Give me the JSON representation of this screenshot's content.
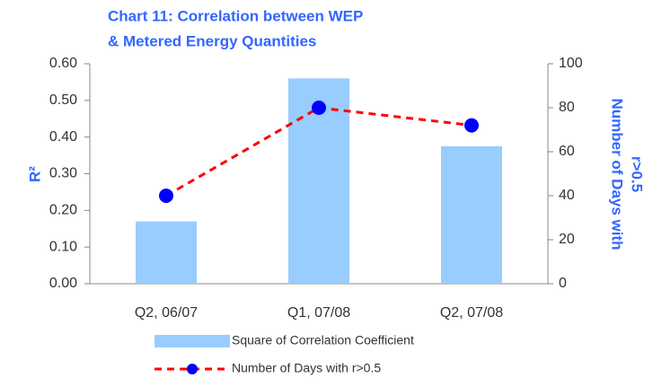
{
  "chart_data": {
    "type": "bar-line",
    "title": [
      "Chart 11: Correlation between WEP",
      "& Metered Energy Quantities"
    ],
    "ylabel": "R²",
    "y2label": [
      "Number of Days with",
      "r>0.5"
    ],
    "categories": [
      "Q2, 06/07",
      "Q1, 07/08",
      "Q2, 07/08"
    ],
    "series": [
      {
        "name": "Square of Correlation Coefficient",
        "type": "bar",
        "color": "#99ccff",
        "values": [
          0.17,
          0.56,
          0.375
        ]
      },
      {
        "name": "Number of Days with r>0.5",
        "type": "line",
        "axis": "y2",
        "color": "#ff0000",
        "marker_color": "#0000ff",
        "values": [
          40,
          80,
          72
        ]
      }
    ],
    "ylim": [
      0,
      0.6
    ],
    "yticks": [
      {
        "value": 0,
        "label": "0.00"
      },
      {
        "value": 0.1,
        "label": "0.10"
      },
      {
        "value": 0.2,
        "label": "0.20"
      },
      {
        "value": 0.3,
        "label": "0.30"
      },
      {
        "value": 0.4,
        "label": "0.40"
      },
      {
        "value": 0.5,
        "label": "0.50"
      },
      {
        "value": 0.6,
        "label": "0.60"
      }
    ],
    "y2lim": [
      0,
      100
    ],
    "y2ticks": [
      0,
      20,
      40,
      60,
      80,
      100
    ]
  }
}
